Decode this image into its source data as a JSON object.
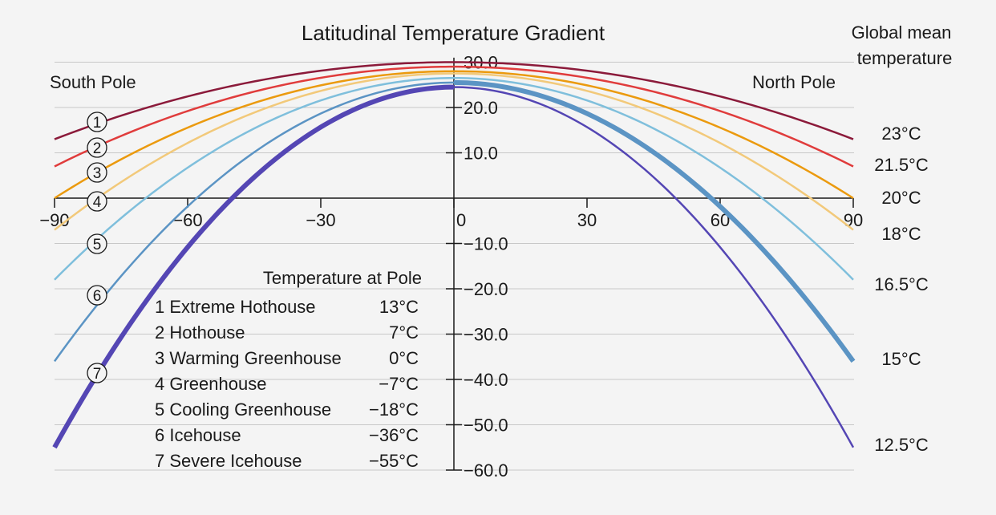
{
  "chart_data": {
    "type": "line",
    "title": "Latitudinal Temperature Gradient",
    "right_header": [
      "Global mean",
      "temperature"
    ],
    "pole_labels": {
      "south": "South Pole",
      "north": "North Pole"
    },
    "x_ticks": [
      "-90",
      "-60",
      "-30",
      "0",
      "30",
      "60",
      "90"
    ],
    "y_ticks": [
      "30.0",
      "20.0",
      "10.0",
      "-10.0",
      "-20.0",
      "-30.0",
      "-40.0",
      "-50.0",
      "-60.0"
    ],
    "xlim": [
      -90,
      90
    ],
    "ylim": [
      -60,
      30
    ],
    "grid": true,
    "legend": {
      "header": "Temperature at Pole",
      "entries": [
        {
          "label": "1 Extreme Hothouse",
          "value": "13°C"
        },
        {
          "label": "2 Hothouse",
          "value": "7°C"
        },
        {
          "label": "3 Warming Greenhouse",
          "value": "0°C"
        },
        {
          "label": "4 Greenhouse",
          "value": "−7°C"
        },
        {
          "label": "5 Cooling Greenhouse",
          "value": "−18°C"
        },
        {
          "label": "6 Icehouse",
          "value": "−36°C"
        },
        {
          "label": "7 Severe Icehouse",
          "value": "−55°C"
        }
      ]
    },
    "series": [
      {
        "marker": "1",
        "global_mean": "23°C",
        "equator_temp": 30.0,
        "pole_temp": 13,
        "color": "#8b1a3a",
        "width": 2.5
      },
      {
        "marker": "2",
        "global_mean": "21.5°C",
        "equator_temp": 29.0,
        "pole_temp": 7,
        "color": "#e03c3c",
        "width": 2.5
      },
      {
        "marker": "3",
        "global_mean": "20°C",
        "equator_temp": 28.0,
        "pole_temp": 0,
        "color": "#eb9a0e",
        "width": 2.5
      },
      {
        "marker": "4",
        "global_mean": "18°C",
        "equator_temp": 27.5,
        "pole_temp": -7,
        "color": "#f2c97a",
        "width": 2.5
      },
      {
        "marker": "5",
        "global_mean": "16.5°C",
        "equator_temp": 26.5,
        "pole_temp": -18,
        "color": "#7fbfdc",
        "width": 2.5
      },
      {
        "marker": "6",
        "global_mean": "15°C",
        "equator_temp": 25.5,
        "pole_temp": -36,
        "color": "#5b94c4",
        "width": 2.5,
        "north_width": 6
      },
      {
        "marker": "7",
        "global_mean": "12.5°C",
        "equator_temp": 24.5,
        "pole_temp": -55,
        "color": "#5446b4",
        "width": 6,
        "north_width": 2.5
      }
    ]
  }
}
